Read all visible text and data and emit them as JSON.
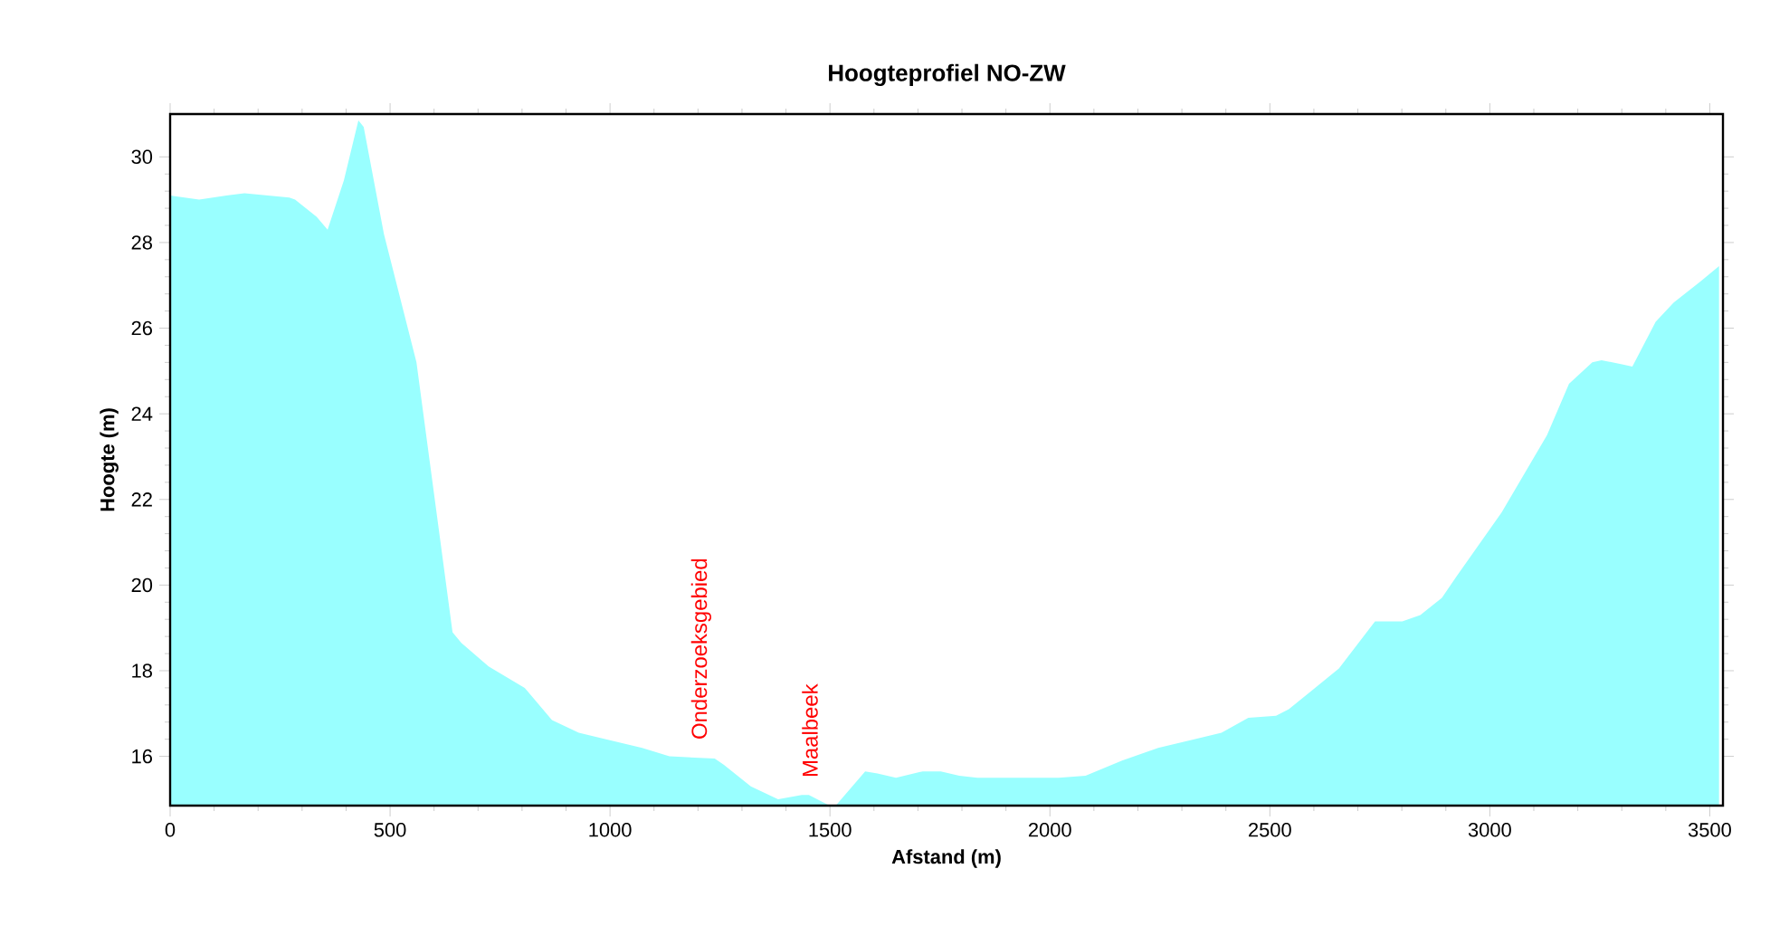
{
  "chart_data": {
    "type": "area",
    "title": "Hoogteprofiel NO-ZW",
    "xlabel": "Afstand (m)",
    "ylabel": "Hoogte (m)",
    "x": [
      0,
      66,
      128,
      169,
      271,
      284,
      333,
      358,
      395,
      428,
      440,
      486,
      560,
      642,
      662,
      724,
      806,
      868,
      929,
      991,
      1073,
      1135,
      1238,
      1259,
      1320,
      1382,
      1436,
      1452,
      1497,
      1514,
      1580,
      1608,
      1650,
      1711,
      1752,
      1794,
      1835,
      2020,
      2081,
      2164,
      2246,
      2328,
      2390,
      2451,
      2514,
      2543,
      2657,
      2739,
      2801,
      2842,
      2891,
      2924,
      3027,
      3130,
      3180,
      3233,
      3254,
      3303,
      3324,
      3377,
      3418,
      3480,
      3521
    ],
    "series": [
      {
        "color": "#99ffff",
        "values": [
          29.1,
          29.0,
          29.1,
          29.15,
          29.05,
          29.0,
          28.6,
          28.3,
          29.45,
          30.85,
          30.7,
          28.2,
          25.2,
          18.9,
          18.65,
          18.1,
          17.6,
          16.85,
          16.55,
          16.4,
          16.2,
          16.0,
          15.95,
          15.8,
          15.3,
          15.0,
          15.1,
          15.1,
          14.86,
          14.86,
          15.65,
          15.6,
          15.5,
          15.65,
          15.65,
          15.55,
          15.5,
          15.5,
          15.55,
          15.9,
          16.2,
          16.4,
          16.55,
          16.9,
          16.95,
          17.1,
          18.05,
          19.15,
          19.15,
          19.3,
          19.7,
          20.2,
          21.7,
          23.5,
          24.7,
          25.2,
          25.25,
          25.15,
          25.1,
          26.15,
          26.6,
          27.1,
          27.45
        ]
      }
    ],
    "xlim": [
      0,
      3530
    ],
    "ylim": [
      14.85,
      31
    ],
    "xticks": [
      0,
      500,
      1000,
      1500,
      2000,
      2500,
      3000,
      3500
    ],
    "yticks": [
      16,
      18,
      20,
      22,
      24,
      26,
      28,
      30
    ],
    "annotations": [
      "Onderzoeksgebied",
      "Maalbeek"
    ]
  }
}
